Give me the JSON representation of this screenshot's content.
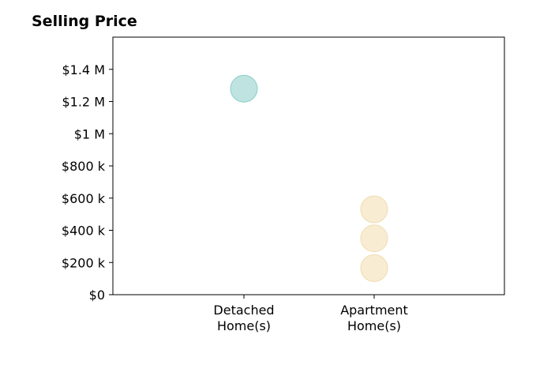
{
  "chart_data": {
    "type": "scatter",
    "title": "Selling Price",
    "categories": [
      "Detached\nHome(s)",
      "Apartment\nHome(s)"
    ],
    "points": [
      {
        "category": "Detached\nHome(s)",
        "value": 1280000,
        "color": "#a8dad5"
      },
      {
        "category": "Apartment\nHome(s)",
        "value": 530000,
        "color": "#f5e6c4"
      },
      {
        "category": "Apartment\nHome(s)",
        "value": 350000,
        "color": "#f5e6c4"
      },
      {
        "category": "Apartment\nHome(s)",
        "value": 165000,
        "color": "#f5e6c4"
      }
    ],
    "yticks": [
      {
        "value": 0,
        "label": "$0"
      },
      {
        "value": 200000,
        "label": "$200 k"
      },
      {
        "value": 400000,
        "label": "$400 k"
      },
      {
        "value": 600000,
        "label": "$600 k"
      },
      {
        "value": 800000,
        "label": "$800 k"
      },
      {
        "value": 1000000,
        "label": "$1 M"
      },
      {
        "value": 1200000,
        "label": "$1.2 M"
      },
      {
        "value": 1400000,
        "label": "$1.4 M"
      }
    ],
    "ylim": [
      0,
      1600000
    ],
    "grid": false,
    "legend": "none"
  }
}
